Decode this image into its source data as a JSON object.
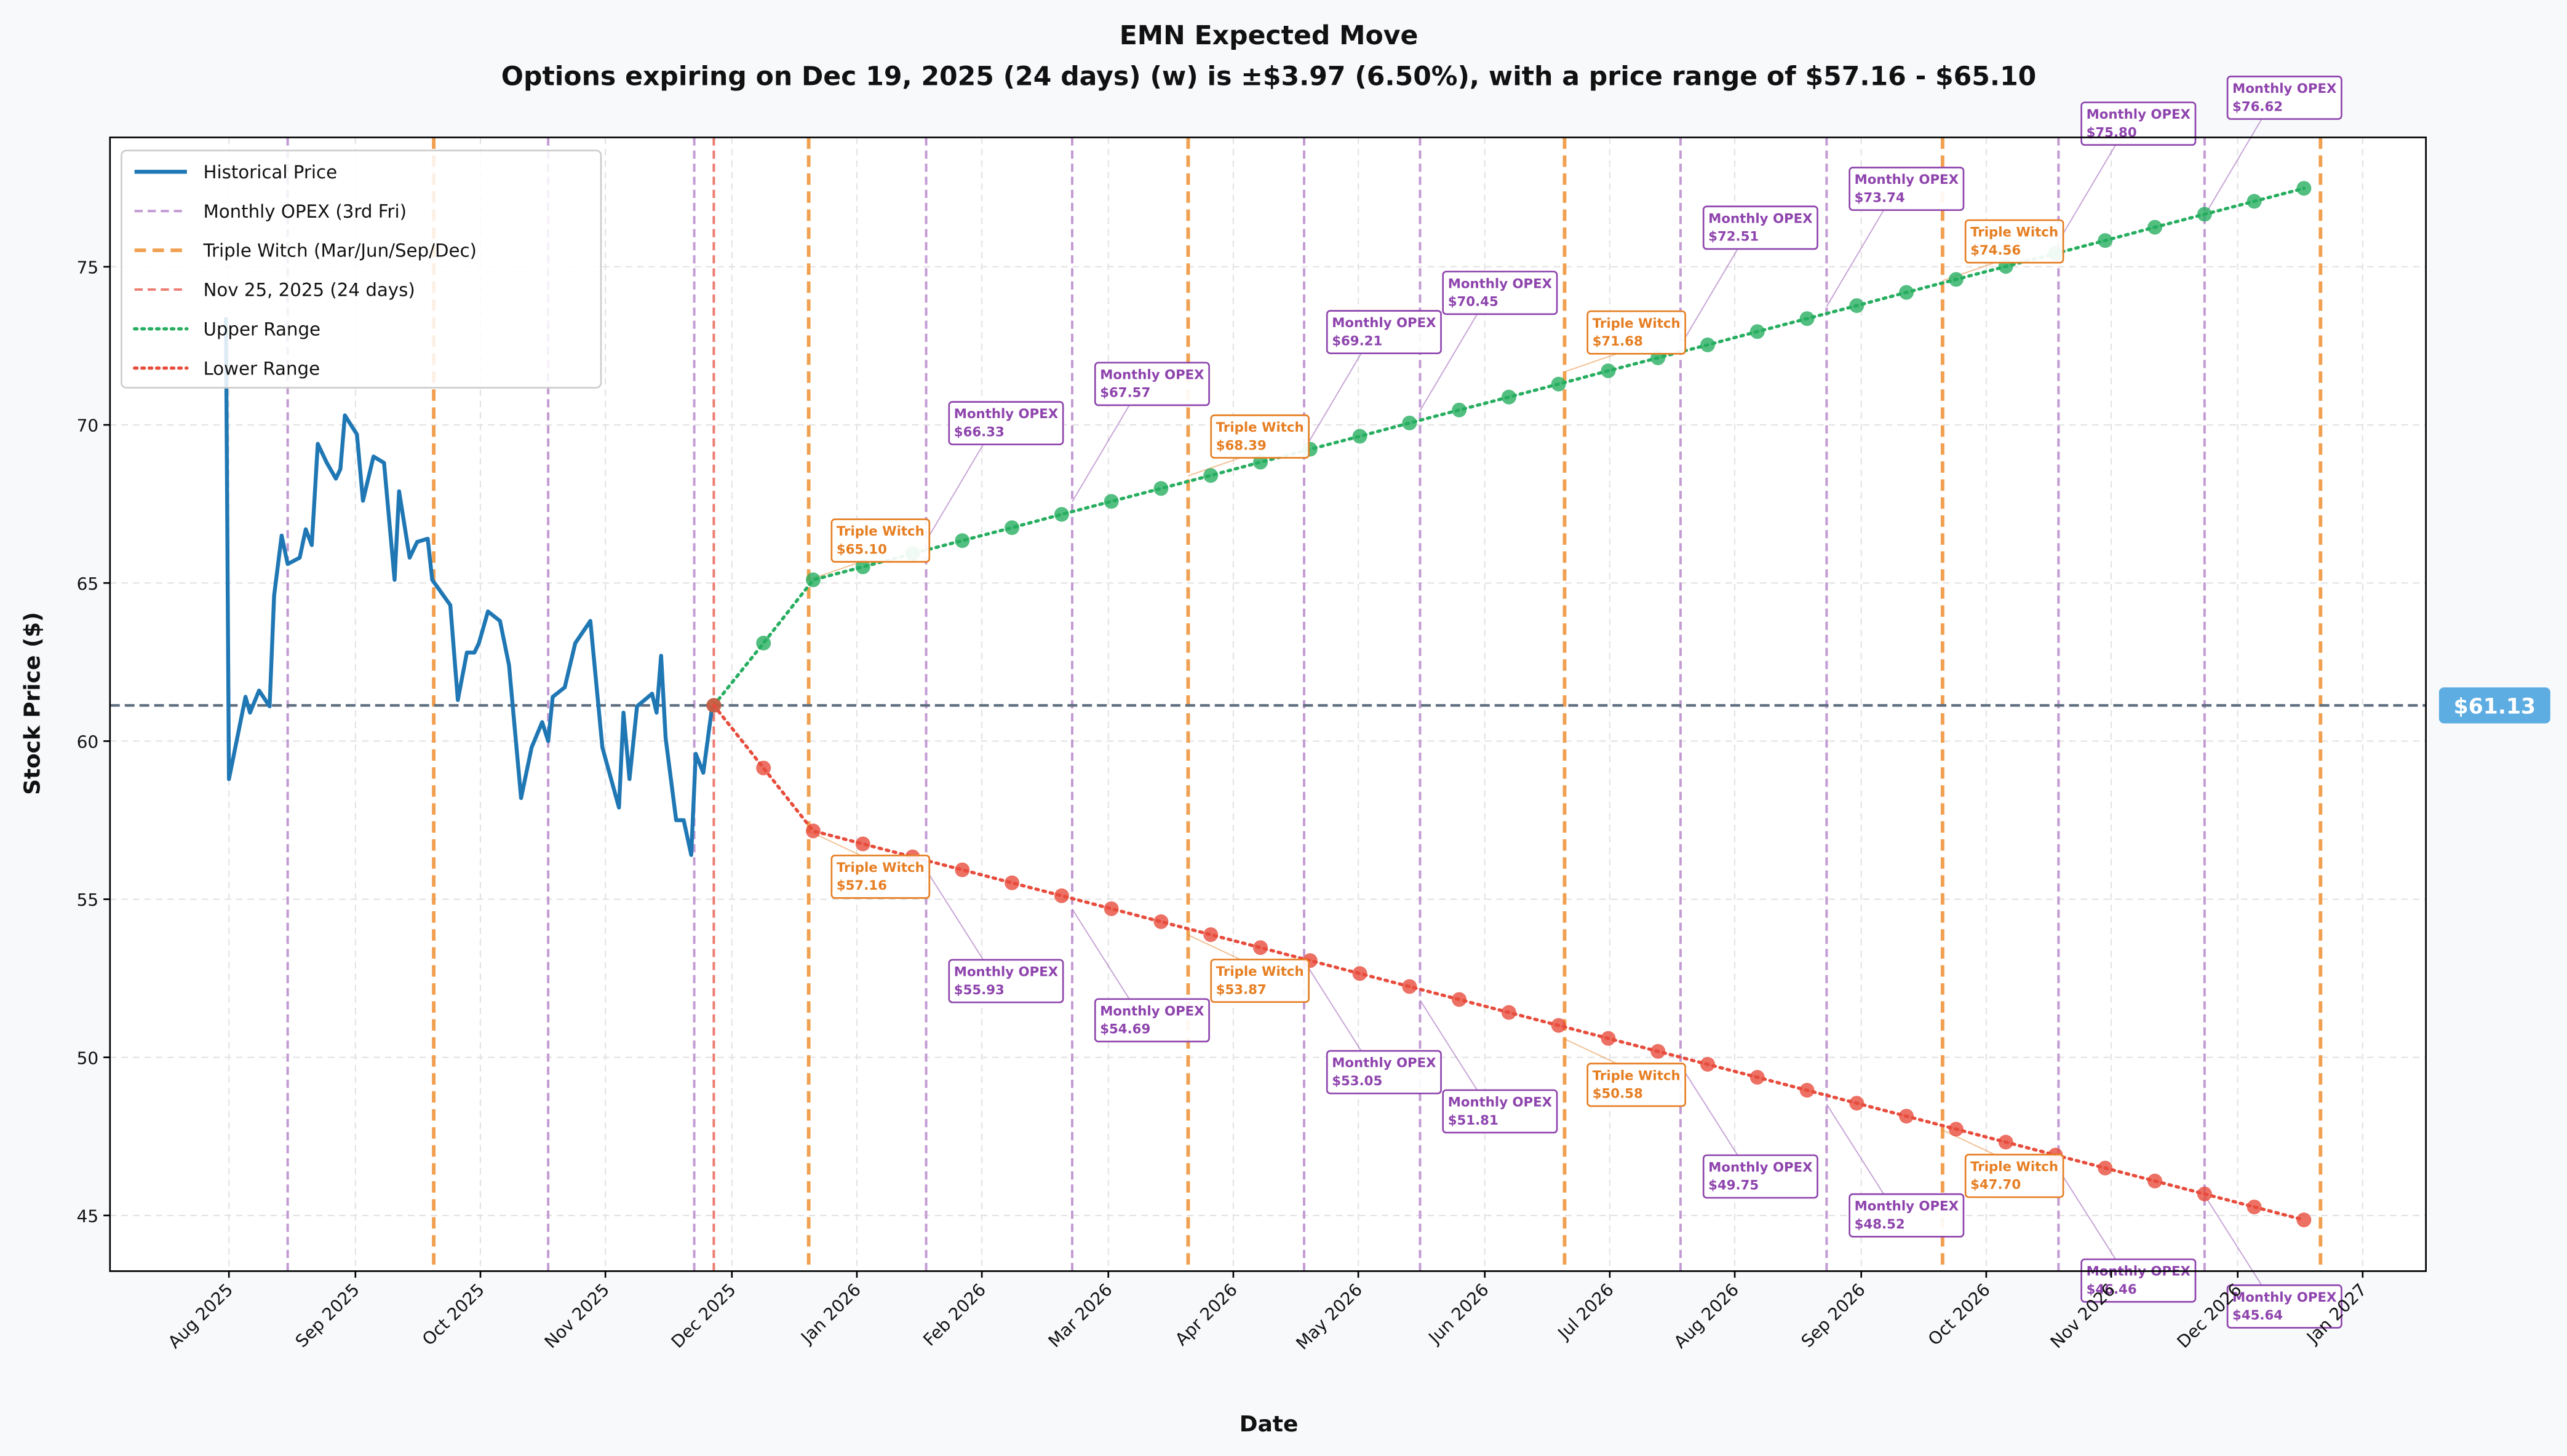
{
  "chart_data": {
    "type": "line",
    "title": "EMN Expected Move",
    "subtitle": "Options expiring on Dec 19, 2025 (24 days) (w) is ±$3.97 (6.50%), with a price range of $57.16 - $65.10",
    "x_label": "Date",
    "y_label": "Stock Price ($)",
    "xlim": [
      2025.504,
      2027.042
    ],
    "ylim": [
      43.24,
      79.09
    ],
    "grid": true,
    "legend": "upper left",
    "xticks": [
      {
        "value": 2025.583,
        "label": "Aug 2025"
      },
      {
        "value": 2025.667,
        "label": "Sep 2025"
      },
      {
        "value": 2025.75,
        "label": "Oct 2025"
      },
      {
        "value": 2025.833,
        "label": "Nov 2025"
      },
      {
        "value": 2025.917,
        "label": "Dec 2025"
      },
      {
        "value": 2026.0,
        "label": "Jan 2026"
      },
      {
        "value": 2026.083,
        "label": "Feb 2026"
      },
      {
        "value": 2026.167,
        "label": "Mar 2026"
      },
      {
        "value": 2026.25,
        "label": "Apr 2026"
      },
      {
        "value": 2026.333,
        "label": "May 2026"
      },
      {
        "value": 2026.417,
        "label": "Jun 2026"
      },
      {
        "value": 2026.5,
        "label": "Jul 2026"
      },
      {
        "value": 2026.583,
        "label": "Aug 2026"
      },
      {
        "value": 2026.667,
        "label": "Sep 2026"
      },
      {
        "value": 2026.75,
        "label": "Oct 2026"
      },
      {
        "value": 2026.833,
        "label": "Nov 2026"
      },
      {
        "value": 2026.917,
        "label": "Dec 2026"
      },
      {
        "value": 2027.0,
        "label": "Jan 2027"
      }
    ],
    "yticks": [
      45,
      50,
      55,
      60,
      65,
      70,
      75
    ],
    "current_price": {
      "value": 61.13,
      "label": "$61.13",
      "color": "#5dade2"
    },
    "vlines": [
      {
        "name": "Monthly OPEX (3rd Fri)",
        "color": "#c39bd3",
        "width": 1.5,
        "x": [
          2025.622,
          2025.795,
          2025.892,
          2026.046,
          2026.143,
          2026.297,
          2026.374,
          2026.547,
          2026.644,
          2026.798,
          2026.895
        ]
      },
      {
        "name": "Triple Witch (Mar/Jun/Sep/Dec)",
        "color": "#f0a050",
        "width": 2.2,
        "x": [
          2025.719,
          2025.968,
          2026.22,
          2026.47,
          2026.721,
          2026.972
        ]
      },
      {
        "name": "Nov 25, 2025 (24 days)",
        "color": "#ec7b70",
        "width": 1.5,
        "x": [
          2025.905
        ]
      }
    ],
    "series": [
      {
        "name": "Historical Price",
        "color": "#1f77b4",
        "line_style": "solid",
        "markers": false,
        "x": [
          2025.581,
          2025.583,
          2025.594,
          2025.597,
          2025.603,
          2025.61,
          2025.613,
          2025.618,
          2025.622,
          2025.63,
          2025.634,
          2025.638,
          2025.642,
          2025.648,
          2025.654,
          2025.657,
          2025.66,
          2025.668,
          2025.672,
          2025.679,
          2025.686,
          2025.693,
          2025.696,
          2025.703,
          2025.708,
          2025.715,
          2025.718,
          2025.73,
          2025.735,
          2025.741,
          2025.746,
          2025.749,
          2025.755,
          2025.763,
          2025.769,
          2025.777,
          2025.784,
          2025.791,
          2025.795,
          2025.798,
          2025.806,
          2025.813,
          2025.823,
          2025.831,
          2025.842,
          2025.845,
          2025.849,
          2025.854,
          2025.864,
          2025.867,
          2025.87,
          2025.873,
          2025.88,
          2025.885,
          2025.89,
          2025.893,
          2025.898,
          2025.904
        ],
        "values": [
          73.4,
          58.8,
          61.4,
          60.9,
          61.6,
          61.1,
          64.6,
          66.5,
          65.6,
          65.8,
          66.7,
          66.2,
          69.4,
          68.8,
          68.3,
          68.6,
          70.3,
          69.7,
          67.6,
          69.0,
          68.8,
          65.1,
          67.9,
          65.8,
          66.3,
          66.4,
          65.1,
          64.3,
          61.3,
          62.8,
          62.8,
          63.1,
          64.1,
          63.8,
          62.4,
          58.2,
          59.8,
          60.6,
          60.0,
          61.4,
          61.7,
          63.1,
          63.8,
          59.8,
          57.9,
          60.9,
          58.8,
          61.1,
          61.5,
          60.9,
          62.7,
          60.1,
          57.5,
          57.5,
          56.4,
          59.6,
          59.0,
          61.13
        ]
      },
      {
        "name": "Upper Range",
        "color": "#27ae60",
        "line_style": "dotted",
        "markers": true,
        "x": [
          2025.905,
          2025.938,
          2025.971,
          2026.004,
          2026.037,
          2026.07,
          2026.103,
          2026.136,
          2026.169,
          2026.202,
          2026.235,
          2026.268,
          2026.301,
          2026.334,
          2026.367,
          2026.4,
          2026.433,
          2026.466,
          2026.499,
          2026.532,
          2026.565,
          2026.598,
          2026.631,
          2026.664,
          2026.697,
          2026.73,
          2026.763,
          2026.796,
          2026.829,
          2026.862,
          2026.895,
          2026.928,
          2026.961
        ],
        "values": [
          61.13,
          63.1,
          65.1,
          65.51,
          65.93,
          66.34,
          66.75,
          67.17,
          67.58,
          67.99,
          68.4,
          68.82,
          69.23,
          69.64,
          70.06,
          70.47,
          70.88,
          71.29,
          71.71,
          72.12,
          72.53,
          72.95,
          73.36,
          73.77,
          74.19,
          74.6,
          75.01,
          75.42,
          75.83,
          76.25,
          76.66,
          77.07,
          77.48
        ],
        "annotations": [
          {
            "label": "Triple Witch",
            "value": 65.1,
            "value_label": "$65.10",
            "x": 2025.968,
            "color": "#e67e22"
          },
          {
            "label": "Monthly OPEX",
            "value": 66.33,
            "value_label": "$66.33",
            "x": 2026.046,
            "color": "#8e44ad"
          },
          {
            "label": "Monthly OPEX",
            "value": 67.57,
            "value_label": "$67.57",
            "x": 2026.143,
            "color": "#8e44ad"
          },
          {
            "label": "Triple Witch",
            "value": 68.39,
            "value_label": "$68.39",
            "x": 2026.22,
            "color": "#e67e22"
          },
          {
            "label": "Monthly OPEX",
            "value": 69.21,
            "value_label": "$69.21",
            "x": 2026.297,
            "color": "#8e44ad"
          },
          {
            "label": "Monthly OPEX",
            "value": 70.45,
            "value_label": "$70.45",
            "x": 2026.374,
            "color": "#8e44ad"
          },
          {
            "label": "Triple Witch",
            "value": 71.68,
            "value_label": "$71.68",
            "x": 2026.47,
            "color": "#e67e22"
          },
          {
            "label": "Monthly OPEX",
            "value": 72.51,
            "value_label": "$72.51",
            "x": 2026.547,
            "color": "#8e44ad"
          },
          {
            "label": "Monthly OPEX",
            "value": 73.74,
            "value_label": "$73.74",
            "x": 2026.644,
            "color": "#8e44ad"
          },
          {
            "label": "Triple Witch",
            "value": 74.56,
            "value_label": "$74.56",
            "x": 2026.721,
            "color": "#e67e22"
          },
          {
            "label": "Monthly OPEX",
            "value": 75.8,
            "value_label": "$75.80",
            "x": 2026.798,
            "color": "#8e44ad"
          },
          {
            "label": "Monthly OPEX",
            "value": 76.62,
            "value_label": "$76.62",
            "x": 2026.895,
            "color": "#8e44ad"
          }
        ]
      },
      {
        "name": "Lower Range",
        "color": "#e74c3c",
        "line_style": "dotted",
        "markers": true,
        "x": [
          2025.905,
          2025.938,
          2025.971,
          2026.004,
          2026.037,
          2026.07,
          2026.103,
          2026.136,
          2026.169,
          2026.202,
          2026.235,
          2026.268,
          2026.301,
          2026.334,
          2026.367,
          2026.4,
          2026.433,
          2026.466,
          2026.499,
          2026.532,
          2026.565,
          2026.598,
          2026.631,
          2026.664,
          2026.697,
          2026.73,
          2026.763,
          2026.796,
          2026.829,
          2026.862,
          2026.895,
          2026.928,
          2026.961
        ],
        "values": [
          61.13,
          59.15,
          57.16,
          56.75,
          56.34,
          55.93,
          55.52,
          55.11,
          54.7,
          54.29,
          53.88,
          53.47,
          53.06,
          52.65,
          52.24,
          51.83,
          51.42,
          51.01,
          50.6,
          50.19,
          49.78,
          49.37,
          48.96,
          48.55,
          48.14,
          47.73,
          47.32,
          46.91,
          46.5,
          46.09,
          45.68,
          45.27,
          44.86
        ],
        "annotations": [
          {
            "label": "Triple Witch",
            "value": 57.16,
            "value_label": "$57.16",
            "x": 2025.968,
            "color": "#e67e22"
          },
          {
            "label": "Monthly OPEX",
            "value": 55.93,
            "value_label": "$55.93",
            "x": 2026.046,
            "color": "#8e44ad"
          },
          {
            "label": "Monthly OPEX",
            "value": 54.69,
            "value_label": "$54.69",
            "x": 2026.143,
            "color": "#8e44ad"
          },
          {
            "label": "Triple Witch",
            "value": 53.87,
            "value_label": "$53.87",
            "x": 2026.22,
            "color": "#e67e22"
          },
          {
            "label": "Monthly OPEX",
            "value": 53.05,
            "value_label": "$53.05",
            "x": 2026.297,
            "color": "#8e44ad"
          },
          {
            "label": "Monthly OPEX",
            "value": 51.81,
            "value_label": "$51.81",
            "x": 2026.374,
            "color": "#8e44ad"
          },
          {
            "label": "Triple Witch",
            "value": 50.58,
            "value_label": "$50.58",
            "x": 2026.47,
            "color": "#e67e22"
          },
          {
            "label": "Monthly OPEX",
            "value": 49.75,
            "value_label": "$49.75",
            "x": 2026.547,
            "color": "#8e44ad"
          },
          {
            "label": "Monthly OPEX",
            "value": 48.52,
            "value_label": "$48.52",
            "x": 2026.644,
            "color": "#8e44ad"
          },
          {
            "label": "Triple Witch",
            "value": 47.7,
            "value_label": "$47.70",
            "x": 2026.721,
            "color": "#e67e22"
          },
          {
            "label": "Monthly OPEX",
            "value": 46.46,
            "value_label": "$46.46",
            "x": 2026.798,
            "color": "#8e44ad"
          },
          {
            "label": "Monthly OPEX",
            "value": 45.64,
            "value_label": "$45.64",
            "x": 2026.895,
            "color": "#8e44ad"
          }
        ]
      }
    ]
  }
}
